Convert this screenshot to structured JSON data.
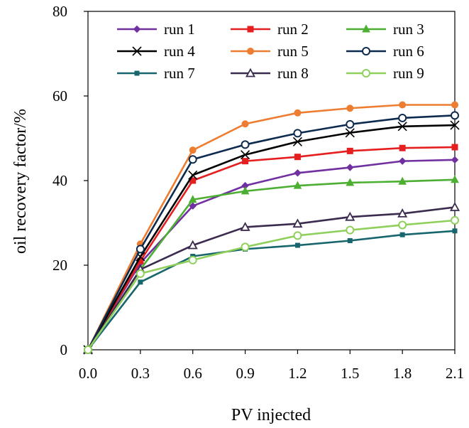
{
  "chart_data": {
    "type": "line",
    "xlabel": "PV injected",
    "ylabel": "oil recovery factor/%",
    "xlim": [
      0.0,
      2.1
    ],
    "ylim": [
      0,
      80
    ],
    "x_ticks": [
      "0.0",
      "0.3",
      "0.6",
      "0.9",
      "1.2",
      "1.5",
      "1.8",
      "2.1"
    ],
    "y_ticks": [
      "0",
      "20",
      "40",
      "60",
      "80"
    ],
    "grid": false,
    "legend_position": "top",
    "x": [
      0.0,
      0.3,
      0.6,
      0.9,
      1.2,
      1.5,
      1.8,
      2.1
    ],
    "series": [
      {
        "name": "run 1",
        "color": "#7030a0",
        "marker": "diamond",
        "values": [
          0,
          20.5,
          34,
          38.8,
          41.8,
          43.1,
          44.6,
          44.9
        ]
      },
      {
        "name": "run 2",
        "color": "#e51f1f",
        "marker": "square",
        "values": [
          0,
          21,
          40,
          44.6,
          45.6,
          47.0,
          47.7,
          47.9
        ]
      },
      {
        "name": "run 3",
        "color": "#4caf32",
        "marker": "triangle",
        "values": [
          0,
          19,
          35.5,
          37.5,
          38.8,
          39.5,
          39.8,
          40.2
        ]
      },
      {
        "name": "run 4",
        "color": "#000000",
        "marker": "x",
        "values": [
          0,
          22,
          41.3,
          46.1,
          49.2,
          51.3,
          52.8,
          53.1
        ]
      },
      {
        "name": "run 5",
        "color": "#ed7d31",
        "marker": "dot",
        "values": [
          0,
          25,
          47.2,
          53.4,
          56,
          57.1,
          57.9,
          57.9
        ]
      },
      {
        "name": "run 6",
        "color": "#0d2b4e",
        "marker": "open-circle",
        "values": [
          0,
          23.8,
          45,
          48.5,
          51.2,
          53.3,
          54.8,
          55.4
        ]
      },
      {
        "name": "run 7",
        "color": "#17666e",
        "marker": "small-square",
        "values": [
          0,
          16,
          22.1,
          23.8,
          24.7,
          25.8,
          27.2,
          28.1
        ]
      },
      {
        "name": "run 8",
        "color": "#3b2b4f",
        "marker": "open-triangle",
        "values": [
          0,
          19,
          24.7,
          29,
          29.8,
          31.4,
          32.2,
          33.7
        ]
      },
      {
        "name": "run 9",
        "color": "#8fcf5c",
        "marker": "open-circle",
        "values": [
          0,
          18,
          21.2,
          24.3,
          27,
          28.3,
          29.5,
          30.6
        ]
      }
    ]
  }
}
